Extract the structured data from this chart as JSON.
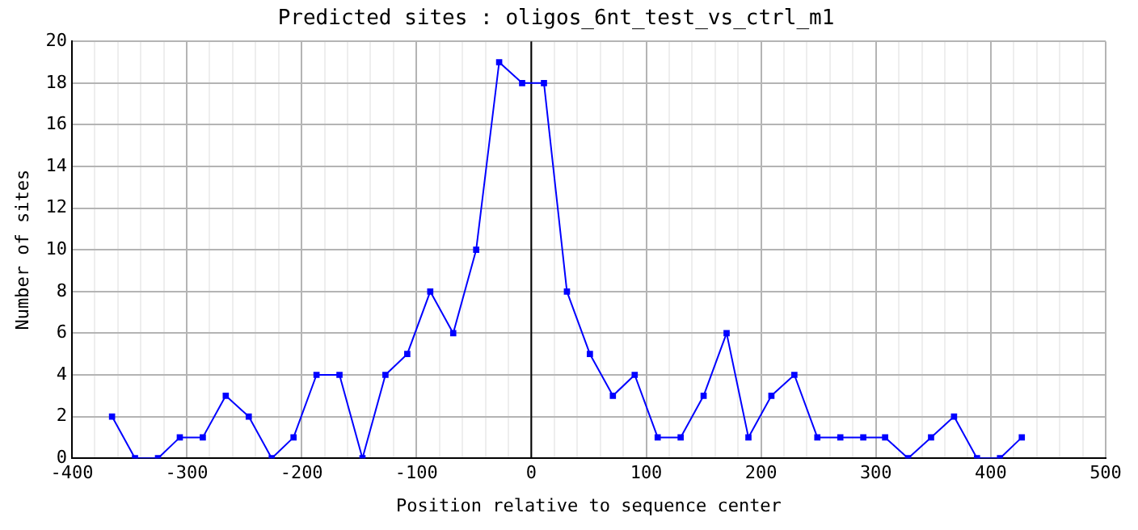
{
  "chart_data": {
    "type": "line",
    "title": "Predicted sites : oligos_6nt_test_vs_ctrl_m1",
    "xlabel": "Position relative to sequence center",
    "ylabel": "Number of sites",
    "series": [
      {
        "color": "#0000ff",
        "x": [
          -365,
          -345,
          -325,
          -306,
          -286,
          -266,
          -246,
          -226,
          -207,
          -187,
          -167,
          -147,
          -127,
          -108,
          -88,
          -68,
          -48,
          -28,
          -8,
          11,
          31,
          51,
          71,
          90,
          110,
          130,
          150,
          170,
          189,
          209,
          229,
          249,
          269,
          289,
          308,
          328,
          348,
          368,
          388,
          408,
          427
        ],
        "values": [
          2,
          0,
          0,
          1,
          1,
          3,
          2,
          0,
          1,
          4,
          4,
          0,
          4,
          5,
          8,
          6,
          10,
          19,
          18,
          18,
          8,
          5,
          3,
          4,
          1,
          1,
          3,
          6,
          1,
          3,
          4,
          1,
          1,
          1,
          1,
          0,
          1,
          2,
          0,
          0,
          1
        ]
      }
    ],
    "xlim": [
      -400,
      500
    ],
    "xticks": [
      -400,
      {
        "value": -380,
        "label": null
      },
      {
        "value": -360,
        "label": null
      },
      {
        "value": -340,
        "label": null
      },
      {
        "value": -320,
        "label": null
      },
      -300,
      {
        "value": -280,
        "label": null
      },
      {
        "value": -260,
        "label": null
      },
      {
        "value": -240,
        "label": null
      },
      {
        "value": -220,
        "label": null
      },
      -200,
      {
        "value": -180,
        "label": null
      },
      {
        "value": -160,
        "label": null
      },
      {
        "value": -140,
        "label": null
      },
      {
        "value": -120,
        "label": null
      },
      -100,
      {
        "value": -80,
        "label": null
      },
      {
        "value": -60,
        "label": null
      },
      {
        "value": -40,
        "label": null
      },
      {
        "value": -20,
        "label": null
      },
      0,
      {
        "value": 20,
        "label": null
      },
      {
        "value": 40,
        "label": null
      },
      {
        "value": 60,
        "label": null
      },
      {
        "value": 80,
        "label": null
      },
      100,
      {
        "value": 120,
        "label": null
      },
      {
        "value": 140,
        "label": null
      },
      {
        "value": 160,
        "label": null
      },
      {
        "value": 180,
        "label": null
      },
      200,
      {
        "value": 220,
        "label": null
      },
      {
        "value": 240,
        "label": null
      },
      {
        "value": 260,
        "label": null
      },
      {
        "value": 280,
        "label": null
      },
      300,
      {
        "value": 320,
        "label": null
      },
      {
        "value": 340,
        "label": null
      },
      {
        "value": 360,
        "label": null
      },
      {
        "value": 380,
        "label": null
      },
      400,
      {
        "value": 420,
        "label": null
      },
      {
        "value": 440,
        "label": null
      },
      {
        "value": 460,
        "label": null
      },
      {
        "value": 480,
        "label": null
      },
      500
    ],
    "ylim": [
      0,
      20
    ],
    "yticks": [
      0,
      2,
      4,
      6,
      8,
      10,
      12,
      14,
      16,
      18,
      20
    ],
    "grid": true,
    "marker": "square",
    "line_style": "solid",
    "ref_lines": [
      {
        "axis": "x",
        "value": 0,
        "color": "#000000"
      }
    ]
  }
}
